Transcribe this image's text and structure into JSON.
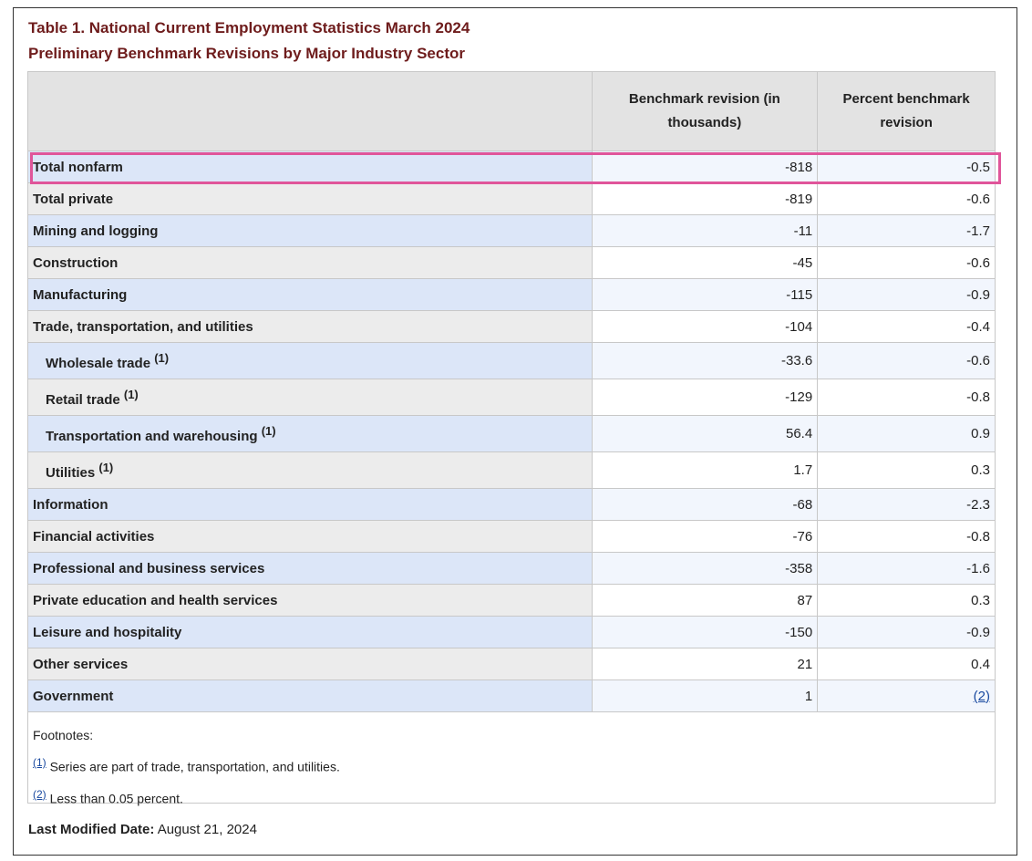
{
  "title": {
    "line1": "Table 1. National Current Employment Statistics March 2024",
    "line2": "Preliminary Benchmark Revisions by Major Industry Sector"
  },
  "table": {
    "headers": [
      "Benchmark revision (in thousands)",
      "Percent benchmark revision"
    ],
    "rows": [
      {
        "label": "Total nonfarm",
        "revision": "-818",
        "percent": "-0.5"
      },
      {
        "label": "Total private",
        "revision": "-819",
        "percent": "-0.6"
      },
      {
        "label": "Mining and logging",
        "revision": "-11",
        "percent": "-1.7"
      },
      {
        "label": "Construction",
        "revision": "-45",
        "percent": "-0.6"
      },
      {
        "label": "Manufacturing",
        "revision": "-115",
        "percent": "-0.9"
      },
      {
        "label": "Trade, transportation, and utilities",
        "revision": "-104",
        "percent": "-0.4"
      },
      {
        "label": "Wholesale trade",
        "note": "(1)",
        "revision": "-33.6",
        "percent": "-0.6"
      },
      {
        "label": "Retail trade",
        "note": "(1)",
        "revision": "-129",
        "percent": "-0.8"
      },
      {
        "label": "Transportation and warehousing",
        "note": "(1)",
        "revision": "56.4",
        "percent": "0.9"
      },
      {
        "label": "Utilities",
        "note": "(1)",
        "revision": "1.7",
        "percent": "0.3"
      },
      {
        "label": "Information",
        "revision": "-68",
        "percent": "-2.3"
      },
      {
        "label": "Financial activities",
        "revision": "-76",
        "percent": "-0.8"
      },
      {
        "label": "Professional and business services",
        "revision": "-358",
        "percent": "-1.6"
      },
      {
        "label": "Private education and health services",
        "revision": "87",
        "percent": "0.3"
      },
      {
        "label": "Leisure and hospitality",
        "revision": "-150",
        "percent": "-0.9"
      },
      {
        "label": "Other services",
        "revision": "21",
        "percent": "0.4"
      },
      {
        "label": "Government",
        "revision": "1",
        "percent_link": "(2)"
      }
    ]
  },
  "footnotes": {
    "heading": "Footnotes:",
    "items": [
      {
        "ref": "(1)",
        "text": "Series are part of trade, transportation, and utilities."
      },
      {
        "ref": "(2)",
        "text": "Less than 0.05 percent."
      }
    ]
  },
  "last_modified": {
    "label": "Last Modified Date:",
    "date": "August 21, 2024"
  }
}
